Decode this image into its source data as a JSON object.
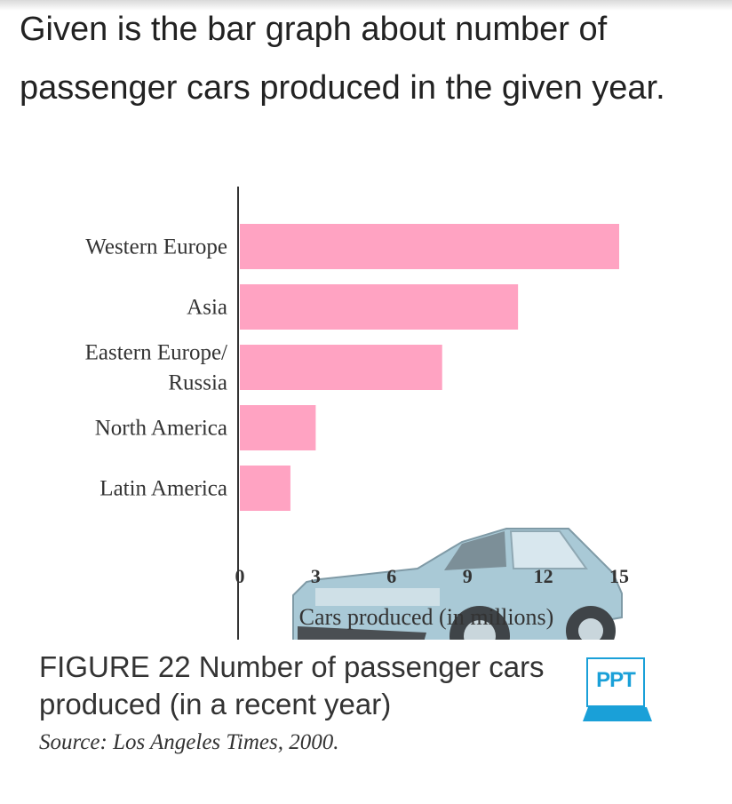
{
  "question_text": "Given is the bar graph about number of passenger cars produced in the given year.",
  "chart_data": {
    "type": "bar",
    "orientation": "horizontal",
    "categories": [
      "Western Europe",
      "Asia",
      "Eastern Europe/ Russia",
      "North America",
      "Latin America"
    ],
    "category_lines": [
      [
        "Western Europe"
      ],
      [
        "Asia"
      ],
      [
        "Eastern Europe/",
        "Russia"
      ],
      [
        "North America"
      ],
      [
        "Latin America"
      ]
    ],
    "values": [
      15,
      11,
      8,
      3,
      2
    ],
    "xlim": [
      0,
      15
    ],
    "xticks": [
      "0",
      "3",
      "6",
      "9",
      "12",
      "15"
    ],
    "xlabel": "Cars produced (in millions)",
    "bar_color": "#ffa3c2",
    "grid": false
  },
  "caption": {
    "figure_title": "FIGURE 22 Number of passenger cars produced (in a recent year)",
    "source": "Source: Los Angeles Times, 2000."
  },
  "ppt_icon": {
    "label": "PPT",
    "color": "#1aa0d8"
  }
}
